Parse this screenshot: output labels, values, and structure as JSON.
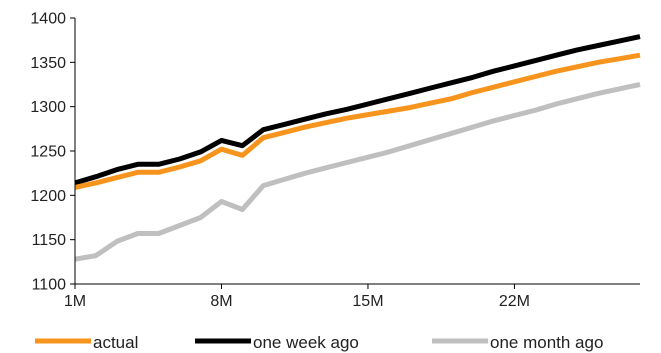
{
  "chart_data": {
    "type": "line",
    "title": "",
    "xlabel": "",
    "ylabel": "",
    "x": [
      1,
      2,
      3,
      4,
      5,
      6,
      7,
      8,
      9,
      10,
      11,
      12,
      13,
      14,
      15,
      16,
      17,
      18,
      19,
      20,
      21,
      22,
      23,
      24,
      25,
      26,
      27,
      28
    ],
    "x_ticks": [
      {
        "x": 1,
        "label": "1M"
      },
      {
        "x": 8,
        "label": "8M"
      },
      {
        "x": 15,
        "label": "15M"
      },
      {
        "x": 22,
        "label": "22M"
      }
    ],
    "ylim": [
      1100,
      1400
    ],
    "y_ticks": [
      1100,
      1150,
      1200,
      1250,
      1300,
      1350,
      1400
    ],
    "grid": false,
    "legend_position": "bottom",
    "series": [
      {
        "name": "actual",
        "color": "#F7941D",
        "values": [
          1209,
          1214,
          1220,
          1226,
          1226,
          1232,
          1239,
          1252,
          1245,
          1265,
          1271,
          1277,
          1282,
          1287,
          1291,
          1295,
          1299,
          1304,
          1309,
          1316,
          1322,
          1328,
          1334,
          1340,
          1345,
          1350,
          1354,
          1358
        ]
      },
      {
        "name": "one week ago",
        "color": "#000000",
        "values": [
          1214,
          1221,
          1229,
          1235,
          1235,
          1241,
          1249,
          1262,
          1256,
          1274,
          1280,
          1286,
          1292,
          1297,
          1303,
          1309,
          1315,
          1321,
          1327,
          1333,
          1340,
          1346,
          1352,
          1358,
          1364,
          1369,
          1374,
          1379
        ]
      },
      {
        "name": "one month ago",
        "color": "#BFBFBF",
        "values": [
          1128,
          1132,
          1148,
          1157,
          1157,
          1166,
          1175,
          1193,
          1184,
          1211,
          1218,
          1225,
          1231,
          1237,
          1243,
          1249,
          1256,
          1263,
          1270,
          1277,
          1284,
          1290,
          1296,
          1303,
          1309,
          1315,
          1320,
          1325
        ]
      }
    ]
  }
}
